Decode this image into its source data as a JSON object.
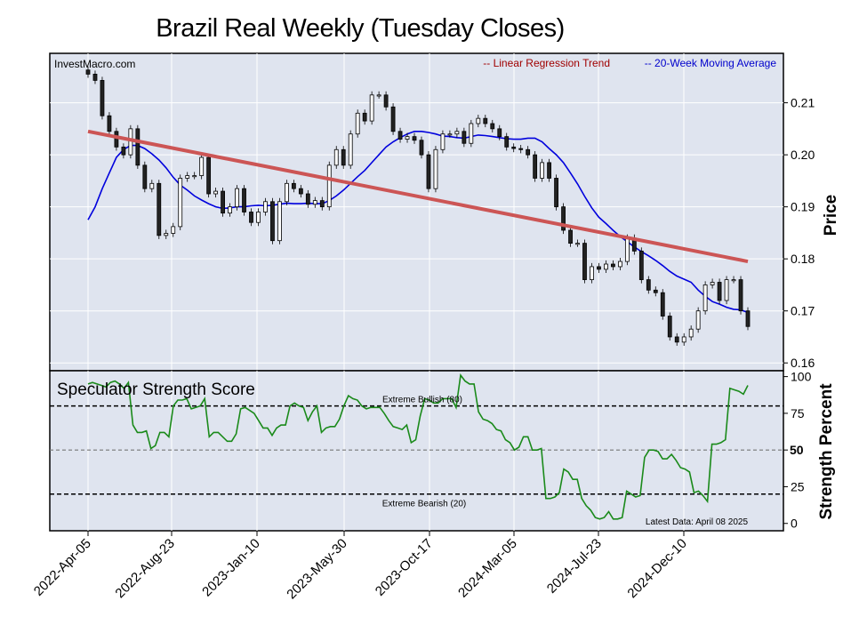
{
  "chart_data": {
    "type": "candlestick",
    "title": "Brazil Real Weekly (Tuesday Closes)",
    "watermark": "InvestMacro.com",
    "legend": {
      "trend": "-- Linear Regression Trend",
      "ma": "-- 20-Week Moving Average",
      "placement": "top-right"
    },
    "price_panel": {
      "ylabel": "Price",
      "ylim": [
        0.1585,
        0.2195
      ],
      "yticks": [
        "0.16",
        "0.17",
        "0.18",
        "0.19",
        "0.20",
        "0.21"
      ],
      "ytick_values": [
        0.16,
        0.17,
        0.18,
        0.19,
        0.2,
        0.21
      ],
      "trend_line": {
        "start": 0.2045,
        "end": 0.1795
      },
      "closes": [
        0.2155,
        0.2143,
        0.2075,
        0.2045,
        0.2015,
        0.2,
        0.205,
        0.198,
        0.1935,
        0.1945,
        0.1845,
        0.1849,
        0.1862,
        0.1955,
        0.196,
        0.196,
        0.1995,
        0.1925,
        0.193,
        0.1888,
        0.19,
        0.1935,
        0.189,
        0.187,
        0.189,
        0.191,
        0.1835,
        0.191,
        0.1945,
        0.1935,
        0.1925,
        0.1905,
        0.1912,
        0.19,
        0.198,
        0.201,
        0.198,
        0.204,
        0.208,
        0.2065,
        0.2115,
        0.2115,
        0.2092,
        0.2045,
        0.203,
        0.2035,
        0.2028,
        0.2,
        0.1935,
        0.201,
        0.204,
        0.204,
        0.2045,
        0.2022,
        0.206,
        0.207,
        0.206,
        0.205,
        0.2035,
        0.2015,
        0.2012,
        0.201,
        0.2,
        0.1955,
        0.1985,
        0.1955,
        0.19,
        0.1855,
        0.183,
        0.183,
        0.176,
        0.1785,
        0.178,
        0.179,
        0.1785,
        0.1795,
        0.184,
        0.1815,
        0.176,
        0.174,
        0.1735,
        0.169,
        0.165,
        0.164,
        0.165,
        0.1665,
        0.17,
        0.175,
        0.1755,
        0.172,
        0.176,
        0.176,
        0.17,
        0.167
      ],
      "ma20": [
        0.1875,
        0.19,
        0.1935,
        0.1965,
        0.1995,
        0.201,
        0.2018,
        0.2018,
        0.2012,
        0.2002,
        0.199,
        0.1975,
        0.1957,
        0.1942,
        0.1932,
        0.1921,
        0.1913,
        0.1906,
        0.19,
        0.1897,
        0.1898,
        0.19,
        0.19,
        0.1902,
        0.1903,
        0.1902,
        0.1903,
        0.1905,
        0.1907,
        0.1906,
        0.1906,
        0.1907,
        0.1906,
        0.1906,
        0.1912,
        0.1921,
        0.1932,
        0.1945,
        0.1958,
        0.197,
        0.1985,
        0.2,
        0.2015,
        0.2025,
        0.2033,
        0.204,
        0.2045,
        0.2045,
        0.2043,
        0.204,
        0.2036,
        0.2035,
        0.2033,
        0.2032,
        0.2035,
        0.2038,
        0.2037,
        0.2035,
        0.2033,
        0.2031,
        0.203,
        0.203,
        0.2032,
        0.2032,
        0.2025,
        0.2012,
        0.2,
        0.1985,
        0.1965,
        0.1944,
        0.192,
        0.1898,
        0.188,
        0.1868,
        0.1855,
        0.1843,
        0.1833,
        0.1823,
        0.1814,
        0.1806,
        0.1797,
        0.1787,
        0.1776,
        0.1767,
        0.1761,
        0.1755,
        0.174,
        0.1728,
        0.1718,
        0.1713,
        0.1707,
        0.1703,
        0.1702,
        0.1697
      ]
    },
    "strength_panel": {
      "title": "Speculator Strength Score",
      "ylabel": "Strength Percent",
      "ylim": [
        -5,
        104
      ],
      "yticks": [
        "0",
        "25",
        "50",
        "75",
        "100"
      ],
      "ytick_values": [
        0,
        25,
        50,
        75,
        100
      ],
      "extreme_bullish": {
        "value": 80,
        "label": "Extreme Bullish (80)"
      },
      "extreme_bearish": {
        "value": 20,
        "label": "Extreme Bearish (20)"
      },
      "midline": {
        "value": 50,
        "label": "50"
      },
      "latest": "Latest Data: April 08 2025",
      "values": [
        95,
        96,
        95,
        94,
        93,
        96,
        97,
        95,
        92,
        96,
        67,
        62,
        62,
        63,
        51,
        53,
        62,
        62,
        59,
        80,
        84,
        84,
        85,
        78,
        79,
        80,
        85,
        59,
        62,
        62,
        59,
        56,
        56,
        61,
        78,
        79,
        77,
        75,
        70,
        65,
        65,
        60,
        65,
        67,
        67,
        80,
        82,
        80,
        79,
        70,
        76,
        80,
        62,
        65,
        66,
        66,
        71,
        80,
        87,
        85,
        84,
        80,
        78,
        79,
        79,
        79,
        75,
        70,
        66,
        65,
        64,
        67,
        55,
        57,
        73,
        85,
        84,
        82,
        82,
        85,
        85,
        85,
        79,
        101,
        97,
        95,
        95,
        76,
        71,
        70,
        68,
        64,
        63,
        57,
        55,
        50,
        52,
        59,
        59,
        50,
        50,
        51,
        17,
        17,
        18,
        21,
        37,
        35,
        30,
        30,
        17,
        12,
        9,
        4,
        3,
        4,
        8,
        3,
        3,
        4,
        22,
        20,
        18,
        19,
        45,
        50,
        50,
        49,
        44,
        44,
        47,
        43,
        38,
        37,
        35,
        21,
        22,
        19,
        15,
        54,
        54,
        55,
        57,
        92,
        91,
        90,
        88,
        94
      ]
    },
    "x_ticks": [
      "2022-Apr-05",
      "2022-Aug-23",
      "2023-Jan-10",
      "2023-May-30",
      "2023-Oct-17",
      "2024-Mar-05",
      "2024-Jul-23",
      "2024-Dec-10"
    ],
    "grid": true
  }
}
